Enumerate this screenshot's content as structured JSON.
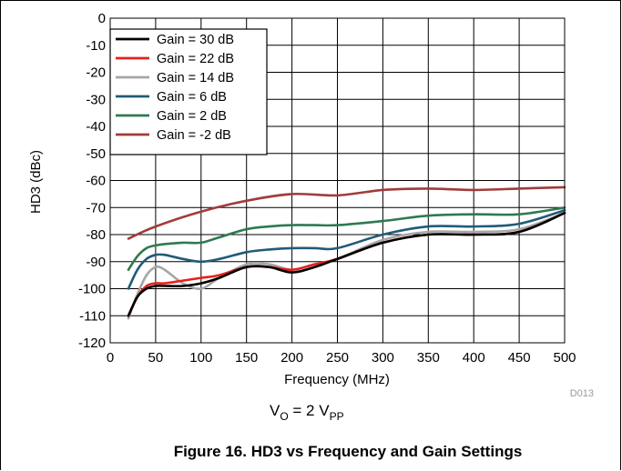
{
  "chart_data": {
    "type": "line",
    "xlabel": "Frequency (MHz)",
    "ylabel": "HD3 (dBc)",
    "xlim": [
      0,
      500
    ],
    "ylim": [
      -120,
      0
    ],
    "x_ticks": [
      "0",
      "50",
      "100",
      "150",
      "200",
      "250",
      "300",
      "350",
      "400",
      "450",
      "500"
    ],
    "y_ticks": [
      "0",
      "-10",
      "-20",
      "-30",
      "-40",
      "-50",
      "-60",
      "-70",
      "-80",
      "-90",
      "-100",
      "-110",
      "-120"
    ],
    "grid": true,
    "legend_position": "top-left",
    "series": [
      {
        "name": "Gain = 30 dB",
        "color": "#000000",
        "x": [
          20,
          30,
          40,
          50,
          60,
          80,
          100,
          120,
          150,
          175,
          200,
          225,
          250,
          300,
          350,
          400,
          450,
          500
        ],
        "y": [
          -110,
          -103,
          -100,
          -99,
          -99,
          -99,
          -98,
          -96,
          -92,
          -92,
          -94,
          -92,
          -89,
          -83,
          -80,
          -80,
          -79,
          -72
        ]
      },
      {
        "name": "Gain = 22 dB",
        "color": "#e8201c",
        "x": [
          20,
          30,
          40,
          50,
          60,
          80,
          100,
          120,
          150,
          175,
          200,
          225,
          250,
          300,
          350,
          400,
          450,
          500
        ],
        "y": [
          -110,
          -103,
          -99,
          -98,
          -98,
          -97,
          -96,
          -95,
          -92,
          -92,
          -93,
          -91,
          -89,
          -83,
          -80,
          -80,
          -79,
          -72
        ]
      },
      {
        "name": "Gain = 14 dB",
        "color": "#a6a6a6",
        "x": [
          20,
          30,
          40,
          50,
          60,
          80,
          100,
          120,
          150,
          175,
          200,
          225,
          250,
          300,
          350,
          400,
          450,
          500
        ],
        "y": [
          -111,
          -102,
          -95,
          -92,
          -93,
          -98,
          -100,
          -96,
          -91,
          -91,
          -93,
          -91,
          -89,
          -82,
          -79,
          -79,
          -78,
          -72
        ]
      },
      {
        "name": "Gain = 6 dB",
        "color": "#215b78",
        "x": [
          20,
          30,
          40,
          50,
          60,
          80,
          100,
          120,
          150,
          175,
          200,
          225,
          250,
          300,
          350,
          400,
          450,
          500
        ],
        "y": [
          -100,
          -93,
          -89,
          -87.5,
          -87.5,
          -89,
          -90,
          -89,
          -86.5,
          -85.5,
          -85,
          -85,
          -85,
          -80,
          -77,
          -77,
          -76,
          -71
        ]
      },
      {
        "name": "Gain = 2 dB",
        "color": "#2e7a4f",
        "x": [
          20,
          30,
          40,
          50,
          60,
          80,
          100,
          120,
          150,
          175,
          200,
          225,
          250,
          300,
          350,
          400,
          450,
          500
        ],
        "y": [
          -93,
          -88,
          -85,
          -84,
          -83.5,
          -83,
          -83,
          -81,
          -78,
          -77,
          -76.5,
          -76.5,
          -76.5,
          -75,
          -73,
          -72.5,
          -72.5,
          -70
        ]
      },
      {
        "name": "Gain = -2 dB",
        "color": "#a23b3b",
        "x": [
          20,
          50,
          100,
          150,
          200,
          250,
          300,
          350,
          400,
          450,
          500
        ],
        "y": [
          -81.5,
          -77,
          -71.5,
          -67.5,
          -65,
          -65.5,
          -63.5,
          -63,
          -63.5,
          -63,
          -62.5
        ]
      }
    ],
    "annotations": {
      "condition_main": "V",
      "condition_sub1": "O",
      "condition_mid": " = 2 V",
      "condition_sub2": "PP",
      "code": "D013"
    }
  },
  "caption": "Figure 16. HD3 vs Frequency and Gain Settings"
}
